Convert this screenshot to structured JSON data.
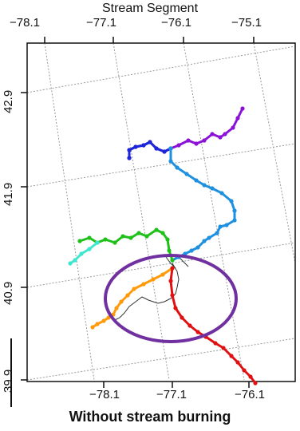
{
  "figure": {
    "top_title": "Stream Segment",
    "caption": "Without stream burning"
  },
  "axes": {
    "top_ticks": [
      "−78.1",
      "−77.1",
      "−76.1",
      "−75.1"
    ],
    "bottom_ticks": [
      "−78.1",
      "−77.1",
      "−76.1"
    ],
    "left_ticks": [
      "42.9",
      "41.9",
      "40.9",
      "39.9"
    ]
  },
  "colors": {
    "frame": "#111111",
    "graticule": "#9a9a9a",
    "ellipse": "#7030a0",
    "thin_streams": "#333333"
  },
  "segments": [
    {
      "name": "purple",
      "color": "#8a12d6",
      "points": [
        [
          304,
          136
        ],
        [
          298,
          148
        ],
        [
          292,
          160
        ],
        [
          282,
          168
        ],
        [
          276,
          172
        ],
        [
          266,
          168
        ],
        [
          256,
          176
        ],
        [
          246,
          180
        ],
        [
          236,
          176
        ],
        [
          224,
          182
        ],
        [
          214,
          186
        ],
        [
          206,
          190
        ],
        [
          196,
          186
        ],
        [
          188,
          178
        ],
        [
          180,
          182
        ],
        [
          170,
          184
        ],
        [
          162,
          188
        ],
        [
          162,
          198
        ]
      ]
    },
    {
      "name": "blue",
      "color": "#1b26d8",
      "points": [
        [
          214,
          186
        ],
        [
          206,
          190
        ],
        [
          196,
          186
        ],
        [
          188,
          178
        ],
        [
          180,
          182
        ],
        [
          170,
          184
        ],
        [
          162,
          188
        ],
        [
          162,
          198
        ]
      ]
    },
    {
      "name": "lightblue",
      "color": "#1e90df",
      "points": [
        [
          214,
          186
        ],
        [
          214,
          202
        ],
        [
          222,
          210
        ],
        [
          234,
          218
        ],
        [
          246,
          226
        ],
        [
          256,
          232
        ],
        [
          266,
          236
        ],
        [
          278,
          242
        ],
        [
          290,
          252
        ],
        [
          294,
          264
        ],
        [
          294,
          276
        ],
        [
          284,
          282
        ],
        [
          276,
          284
        ],
        [
          272,
          292
        ],
        [
          262,
          298
        ],
        [
          256,
          302
        ],
        [
          248,
          310
        ],
        [
          240,
          314
        ],
        [
          232,
          318
        ],
        [
          224,
          322
        ],
        [
          216,
          326
        ]
      ]
    },
    {
      "name": "green",
      "color": "#20c01a",
      "points": [
        [
          216,
          326
        ],
        [
          212,
          314
        ],
        [
          210,
          300
        ],
        [
          204,
          292
        ],
        [
          196,
          288
        ],
        [
          184,
          296
        ],
        [
          174,
          292
        ],
        [
          164,
          298
        ],
        [
          154,
          296
        ],
        [
          144,
          304
        ],
        [
          132,
          300
        ],
        [
          122,
          304
        ],
        [
          112,
          298
        ],
        [
          100,
          302
        ]
      ]
    },
    {
      "name": "cyan",
      "color": "#3ee6d0",
      "points": [
        [
          122,
          304
        ],
        [
          112,
          312
        ],
        [
          102,
          318
        ],
        [
          94,
          326
        ],
        [
          88,
          330
        ]
      ]
    },
    {
      "name": "orange",
      "color": "#ff9a0a",
      "points": [
        [
          216,
          336
        ],
        [
          204,
          344
        ],
        [
          192,
          350
        ],
        [
          180,
          356
        ],
        [
          168,
          362
        ],
        [
          160,
          370
        ],
        [
          152,
          378
        ],
        [
          146,
          386
        ],
        [
          142,
          394
        ],
        [
          136,
          398
        ],
        [
          130,
          402
        ],
        [
          122,
          406
        ],
        [
          116,
          410
        ]
      ]
    },
    {
      "name": "red",
      "color": "#e01010",
      "points": [
        [
          216,
          336
        ],
        [
          214,
          352
        ],
        [
          216,
          370
        ],
        [
          220,
          386
        ],
        [
          228,
          398
        ],
        [
          238,
          408
        ],
        [
          248,
          416
        ],
        [
          258,
          422
        ],
        [
          270,
          430
        ],
        [
          280,
          436
        ],
        [
          290,
          446
        ],
        [
          298,
          454
        ],
        [
          306,
          464
        ],
        [
          314,
          472
        ],
        [
          320,
          480
        ]
      ]
    }
  ],
  "thin_streams": [
    {
      "points": [
        [
          216,
          330
        ],
        [
          222,
          340
        ],
        [
          224,
          350
        ],
        [
          222,
          360
        ],
        [
          220,
          368
        ],
        [
          214,
          374
        ],
        [
          206,
          378
        ],
        [
          198,
          380
        ],
        [
          186,
          376
        ],
        [
          178,
          372
        ],
        [
          170,
          378
        ],
        [
          162,
          384
        ],
        [
          156,
          392
        ],
        [
          150,
          398
        ],
        [
          142,
          402
        ]
      ]
    },
    {
      "points": [
        [
          208,
          322
        ],
        [
          214,
          330
        ],
        [
          220,
          336
        ]
      ]
    },
    {
      "points": [
        [
          224,
          322
        ],
        [
          230,
          328
        ],
        [
          236,
          334
        ]
      ]
    }
  ]
}
